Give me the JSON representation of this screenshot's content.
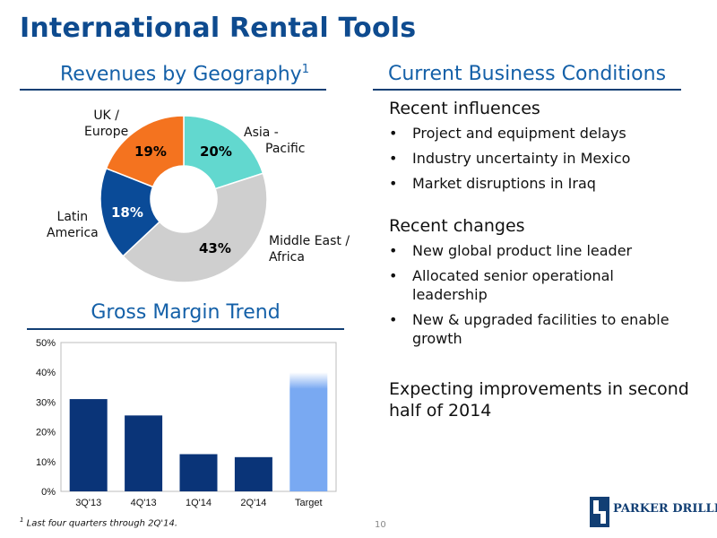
{
  "title": "International Rental Tools",
  "revenues": {
    "heading": "Revenues by Geography",
    "heading_sup": "1",
    "labels": {
      "uk_europe": [
        "UK /",
        "Europe"
      ],
      "asia_pacific": [
        "Asia -",
        "Pacific"
      ],
      "latin_america": [
        "Latin",
        "America"
      ],
      "middle_east_africa": [
        "Middle East /",
        "Africa"
      ]
    }
  },
  "conditions": {
    "heading": "Current Business Conditions",
    "influences_head": "Recent influences",
    "influences": [
      "Project and equipment delays",
      "Industry uncertainty in Mexico",
      "Market disruptions in Iraq"
    ],
    "changes_head": "Recent changes",
    "changes": [
      "New global product line leader",
      "Allocated senior operational leadership",
      "New & upgraded facilities to enable growth"
    ],
    "expecting": "Expecting improvements in second half of 2014"
  },
  "gross_margin": {
    "heading": "Gross Margin Trend"
  },
  "chart_data": [
    {
      "type": "pie",
      "subtype": "donut",
      "title": "Revenues by Geography",
      "slices": [
        {
          "label": "Asia - Pacific",
          "value": 20,
          "value_label": "20%",
          "color": "#62d8cf",
          "label_color": "#111111"
        },
        {
          "label": "Middle East / Africa",
          "value": 43,
          "value_label": "43%",
          "color": "#cfcfcf",
          "label_color": "#111111"
        },
        {
          "label": "Latin America",
          "value": 18,
          "value_label": "18%",
          "color": "#0a4b98",
          "label_color": "#ffffff"
        },
        {
          "label": "UK / Europe",
          "value": 19,
          "value_label": "19%",
          "color": "#f4731f",
          "label_color": "#111111"
        }
      ]
    },
    {
      "type": "bar",
      "title": "Gross Margin Trend",
      "categories": [
        "3Q'13",
        "4Q'13",
        "1Q'14",
        "2Q'14",
        "Target"
      ],
      "values": [
        31,
        25.5,
        12.5,
        11.5,
        40
      ],
      "colors": [
        "#0a3478",
        "#0a3478",
        "#0a3478",
        "#0a3478",
        "#79a9f2"
      ],
      "ylim": [
        0,
        50
      ],
      "yticks": [
        "0%",
        "10%",
        "20%",
        "30%",
        "40%",
        "50%"
      ],
      "grid": false
    }
  ],
  "footnote": {
    "sup": "1",
    "text": "Last four quarters through 2Q'14."
  },
  "page_number": "10",
  "logo": {
    "text": "PARKER DRILLING",
    "icon": "parker-drilling-logo-icon",
    "color": "#123f74"
  }
}
